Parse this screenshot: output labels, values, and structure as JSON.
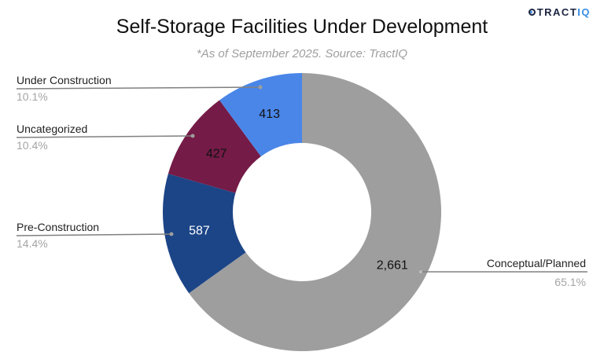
{
  "brand": {
    "logo_main": "TRACT",
    "logo_accent": "IQ"
  },
  "chart_data": {
    "type": "pie",
    "subtype": "donut",
    "title": "Self-Storage Facilities Under Development",
    "subtitle": "*As of September 2025. Source: TractIQ",
    "start_angle_deg": 0,
    "direction": "clockwise",
    "slices": [
      {
        "label": "Conceptual/Planned",
        "value": 2661,
        "value_label": "2,661",
        "percent_label": "65.1%",
        "color": "#9e9e9e",
        "value_text_color": "#111111",
        "legend_side": "right"
      },
      {
        "label": "Pre-Construction",
        "value": 587,
        "value_label": "587",
        "percent_label": "14.4%",
        "color": "#1c4587",
        "value_text_color": "#ffffff",
        "legend_side": "left"
      },
      {
        "label": "Uncategorized",
        "value": 427,
        "value_label": "427",
        "percent_label": "10.4%",
        "color": "#741b47",
        "value_text_color": "#111111",
        "legend_side": "left"
      },
      {
        "label": "Under Construction",
        "value": 413,
        "value_label": "413",
        "percent_label": "10.1%",
        "color": "#4a86e8",
        "value_text_color": "#111111",
        "legend_side": "left"
      }
    ]
  }
}
